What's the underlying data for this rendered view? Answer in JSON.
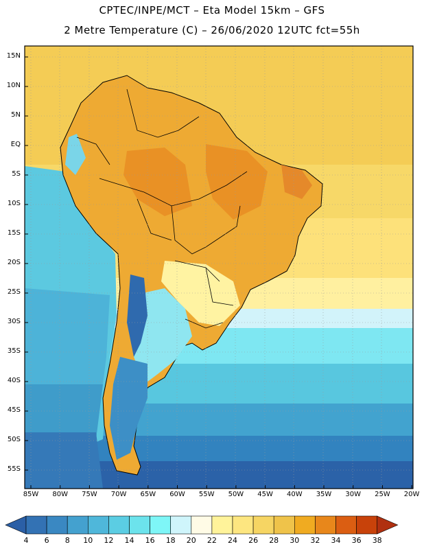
{
  "header": {
    "line1": "CPTEC/INPE/MCT –  Eta Model 15km – GFS",
    "line2": "2 Metre Temperature (C) – 26/06/2020 12UTC fct=55h"
  },
  "map": {
    "lat_range": [
      -58,
      17
    ],
    "lon_range": [
      -86,
      -20
    ],
    "lat_labels": [
      "15N",
      "10N",
      "5N",
      "EQ",
      "5S",
      "10S",
      "15S",
      "20S",
      "25S",
      "30S",
      "35S",
      "40S",
      "45S",
      "50S",
      "55S"
    ],
    "lon_labels": [
      "85W",
      "80W",
      "75W",
      "70W",
      "65W",
      "60W",
      "55W",
      "50W",
      "45W",
      "40W",
      "35W",
      "30W",
      "25W",
      "20W"
    ]
  },
  "colorbar": {
    "levels": [
      "4",
      "6",
      "8",
      "10",
      "12",
      "14",
      "16",
      "18",
      "20",
      "22",
      "24",
      "26",
      "28",
      "30",
      "32",
      "34",
      "36",
      "38"
    ],
    "colors": [
      "#2b5fa6",
      "#3372b4",
      "#3a88c2",
      "#44a1cf",
      "#4fb7da",
      "#5bcde3",
      "#6ce3ec",
      "#7ef6f7",
      "#cff5fb",
      "#fffbe6",
      "#fff39a",
      "#fde680",
      "#f6d563",
      "#efc34a",
      "#f0ab21",
      "#e8871b",
      "#db5e12",
      "#c8420a",
      "#b03010"
    ]
  }
}
